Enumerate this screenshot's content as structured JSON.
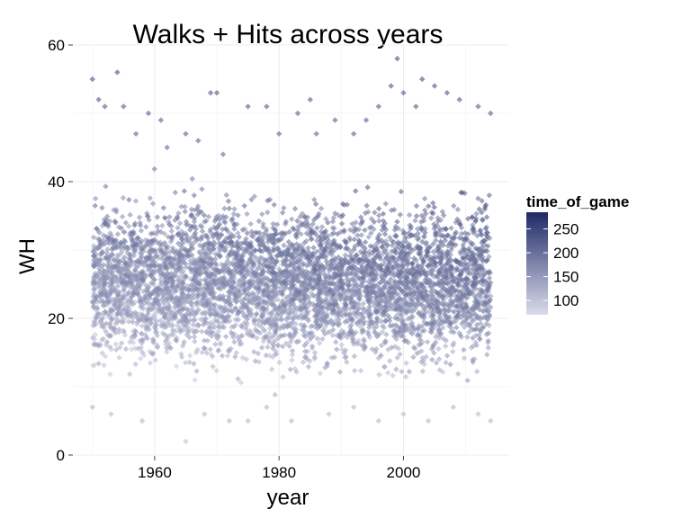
{
  "chart_data": {
    "type": "scatter",
    "title": "Walks + Hits across years",
    "xlabel": "year",
    "ylabel": "WH",
    "xlim": [
      1947,
      2017
    ],
    "ylim": [
      0,
      60
    ],
    "x_ticks": [
      "1960",
      "1980",
      "2000"
    ],
    "y_ticks": [
      "0",
      "20",
      "40",
      "60"
    ],
    "grid": true,
    "legend": {
      "title": "time_of_game",
      "placement": "right",
      "labels": [
        "250",
        "200",
        "150",
        "100"
      ],
      "range": [
        70,
        285
      ],
      "colors": {
        "low": "#dadcec",
        "high": "#1f2a66"
      }
    },
    "series": [
      {
        "x_range": [
          1950,
          2014
        ],
        "points": [
          [
            1950,
            55
          ],
          [
            1951,
            52
          ],
          [
            1952,
            51
          ],
          [
            1954,
            56
          ],
          [
            1955,
            51
          ],
          [
            1957,
            47
          ],
          [
            1959,
            50
          ],
          [
            1961,
            49
          ],
          [
            1962,
            45
          ],
          [
            1965,
            47
          ],
          [
            1967,
            46
          ],
          [
            1969,
            53
          ],
          [
            1970,
            53
          ],
          [
            1971,
            44
          ],
          [
            1975,
            51
          ],
          [
            1978,
            51
          ],
          [
            1980,
            47
          ],
          [
            1983,
            50
          ],
          [
            1985,
            52
          ],
          [
            1986,
            47
          ],
          [
            1989,
            49
          ],
          [
            1992,
            47
          ],
          [
            1994,
            49
          ],
          [
            1996,
            51
          ],
          [
            1998,
            54
          ],
          [
            1999,
            58
          ],
          [
            2000,
            53
          ],
          [
            2002,
            51
          ],
          [
            2003,
            55
          ],
          [
            2005,
            54
          ],
          [
            2007,
            53
          ],
          [
            2009,
            52
          ],
          [
            2012,
            51
          ],
          [
            2014,
            50
          ],
          [
            1950,
            7
          ],
          [
            1953,
            6
          ],
          [
            1958,
            5
          ],
          [
            1965,
            2
          ],
          [
            1968,
            6
          ],
          [
            1972,
            5
          ],
          [
            1975,
            5
          ],
          [
            1978,
            7
          ],
          [
            1982,
            5
          ],
          [
            1988,
            6
          ],
          [
            1992,
            7
          ],
          [
            1996,
            5
          ],
          [
            2000,
            6
          ],
          [
            2004,
            5
          ],
          [
            2008,
            7
          ],
          [
            2012,
            6
          ],
          [
            2014,
            5
          ]
        ]
      }
    ]
  }
}
